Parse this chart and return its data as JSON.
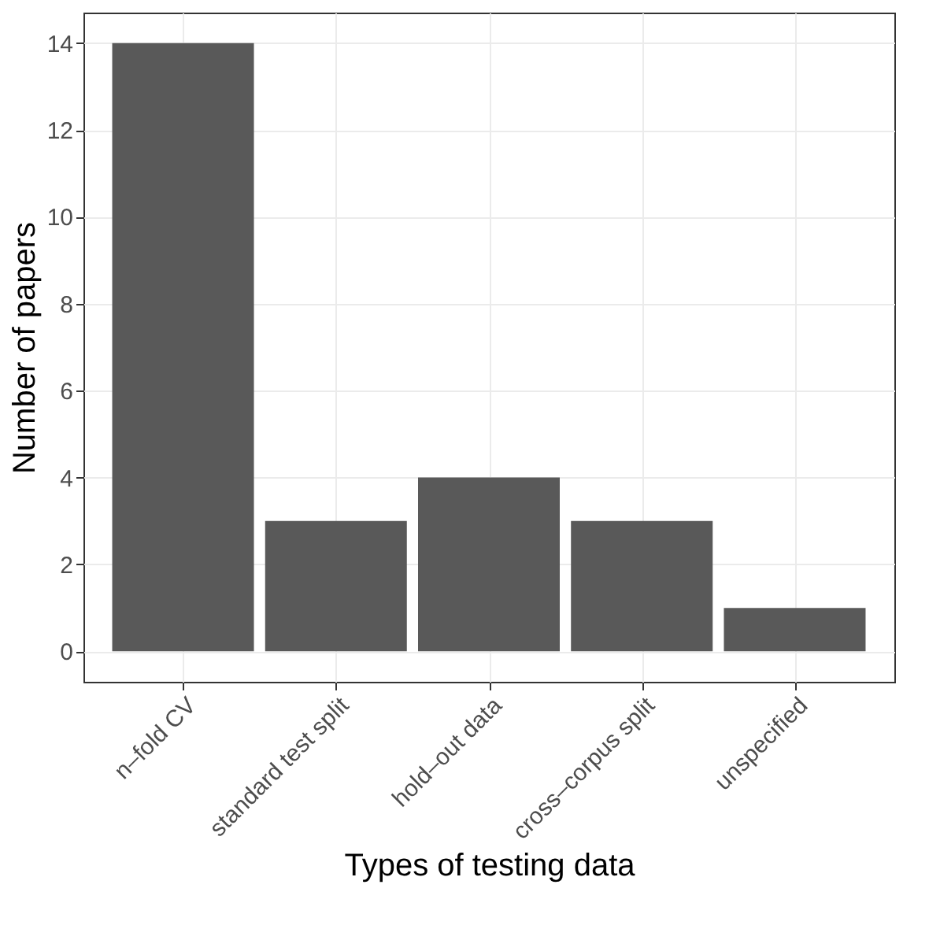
{
  "chart_data": {
    "type": "bar",
    "xlabel": "Types of testing data",
    "ylabel": "Number of papers",
    "categories": [
      "n–fold CV",
      "standard test split",
      "hold–out data",
      "cross–corpus split",
      "unspecified"
    ],
    "values": [
      14,
      3,
      4,
      3,
      1
    ],
    "color": "#595959",
    "ylim": [
      -0.7,
      14.7
    ],
    "yticks": [
      0,
      2,
      4,
      6,
      8,
      10,
      12,
      14
    ],
    "grid": true
  }
}
